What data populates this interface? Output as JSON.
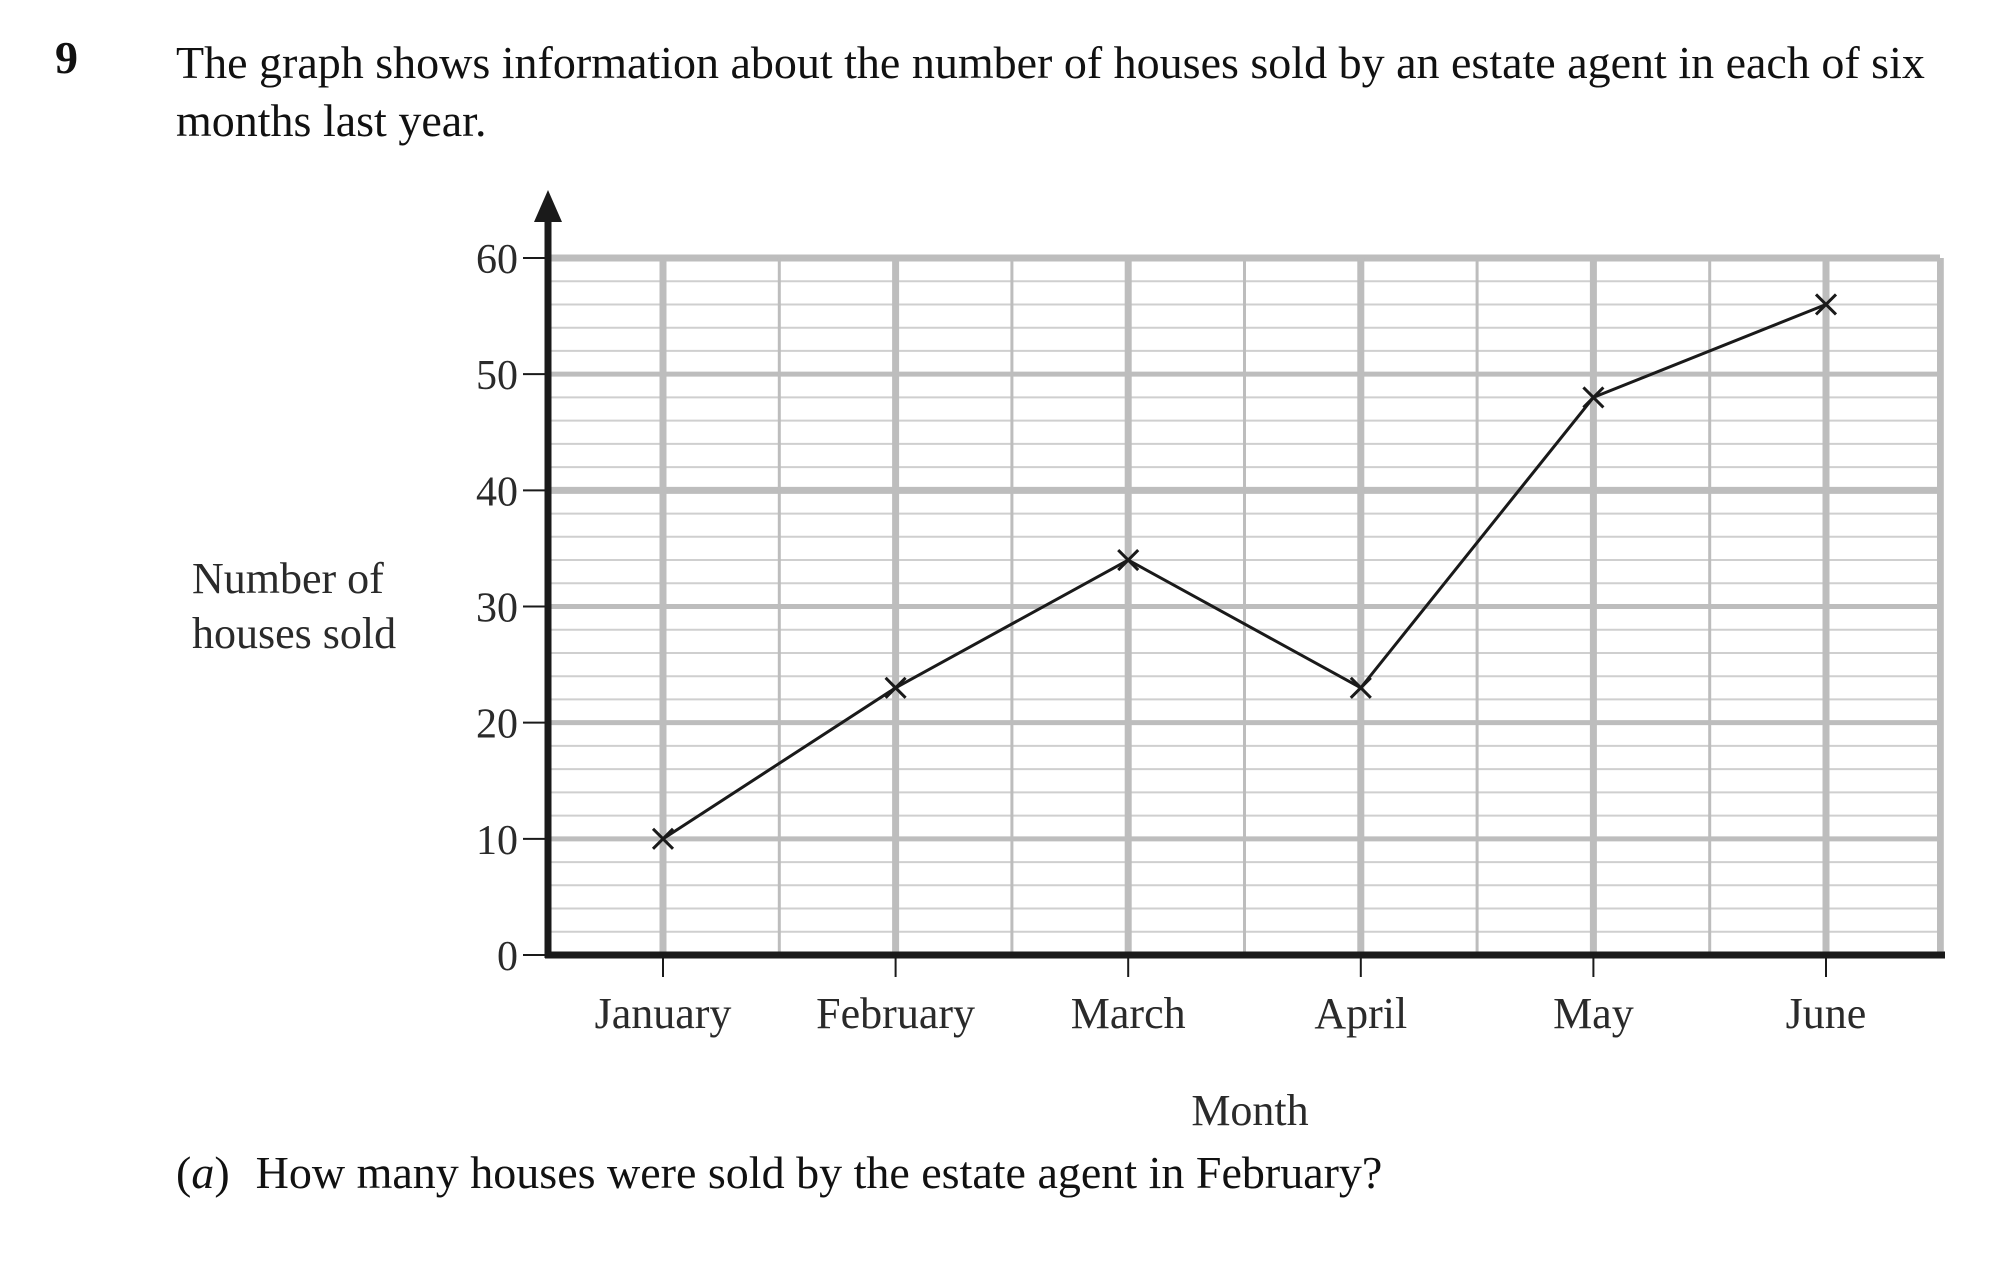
{
  "question": {
    "number": "9",
    "stem": "The graph shows information about the number of houses sold by an estate agent in each of six months last year.",
    "part_open": "(",
    "part_letter": "a",
    "part_close": ")",
    "part_text": "How many houses were sold by the estate agent in February?"
  },
  "chart_data": {
    "type": "line",
    "title": "",
    "xlabel": "Month",
    "ylabel": "Number of houses sold",
    "categories": [
      "January",
      "February",
      "March",
      "April",
      "May",
      "June"
    ],
    "values": [
      10,
      23,
      34,
      23,
      48,
      56
    ],
    "ylim": [
      0,
      60
    ],
    "yticks": [
      0,
      10,
      20,
      30,
      40,
      50,
      60
    ],
    "marker": "cross",
    "grid": true,
    "colors": {
      "line": "#1a1a1a",
      "axis": "#1a1a1a",
      "grid_major": "#bdbdbd",
      "grid_minor": "#cfcfcf"
    }
  }
}
